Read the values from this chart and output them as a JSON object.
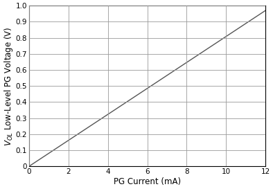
{
  "x": [
    0,
    12
  ],
  "y": [
    0,
    0.97
  ],
  "xlim": [
    0,
    12
  ],
  "ylim": [
    0,
    1.0
  ],
  "xticks": [
    0,
    2,
    4,
    6,
    8,
    10,
    12
  ],
  "yticks": [
    0,
    0.1,
    0.2,
    0.3,
    0.4,
    0.5,
    0.6,
    0.7,
    0.8,
    0.9,
    1.0
  ],
  "ytick_labels": [
    "0",
    "0.1",
    "0.2",
    "0.3",
    "0.4",
    "0.5",
    "0.6",
    "0.7",
    "0.8",
    "0.9",
    "1.0"
  ],
  "xlabel": "PG Current (mA)",
  "ylabel_main": "Low-Level PG Voltage (V)",
  "ylabel_sub": "V$_{OL}$",
  "line_color": "#555555",
  "line_width": 1.0,
  "grid_color": "#999999",
  "background_color": "#ffffff",
  "tick_fontsize": 7.5,
  "label_fontsize": 8.5
}
